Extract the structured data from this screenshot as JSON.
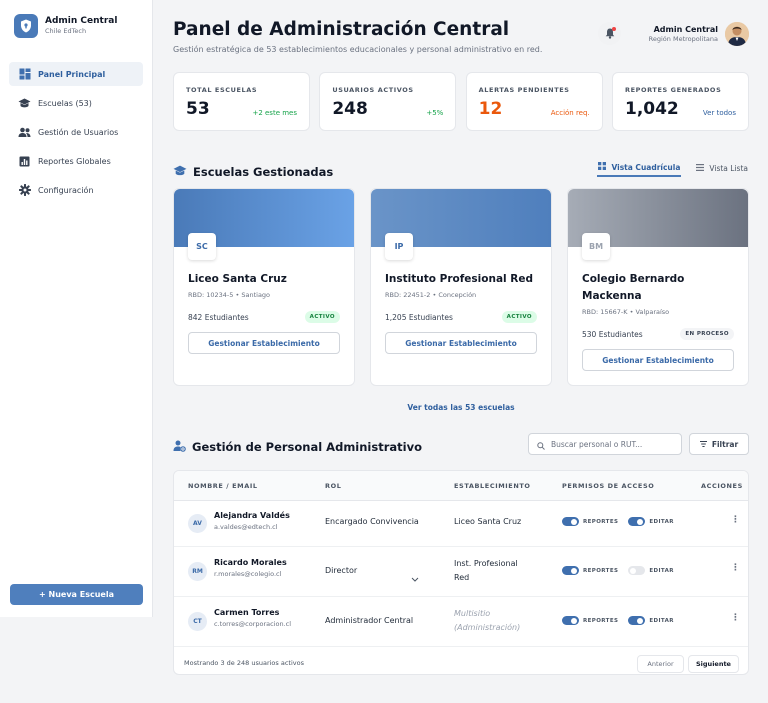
{
  "brand": {
    "title": "Admin Central",
    "subtitle": "Chile EdTech",
    "icon": "shield-icon",
    "color": "#4a7ab8"
  },
  "sidebar": {
    "items": [
      {
        "label": "Panel Principal",
        "icon": "dashboard-icon",
        "active": true
      },
      {
        "label": "Escuelas (53)",
        "icon": "school-icon",
        "active": false
      },
      {
        "label": "Gestión de Usuarios",
        "icon": "users-icon",
        "active": false
      },
      {
        "label": "Reportes Globales",
        "icon": "chart-icon",
        "active": false
      },
      {
        "label": "Configuración",
        "icon": "gear-icon",
        "active": false
      }
    ],
    "new_button": "+ Nueva Escuela"
  },
  "header": {
    "title": "Panel de Administración Central",
    "subtitle": "Gestión estratégica de 53 establecimientos educacionales y personal administrativo en red.",
    "user_name": "Admin Central",
    "user_region": "Región Metropolitana"
  },
  "stats": [
    {
      "label": "TOTAL ESCUELAS",
      "value": "53",
      "note": "+2 este mes",
      "note_color": "#16a34a",
      "value_color": "#111827"
    },
    {
      "label": "USUARIOS ACTIVOS",
      "value": "248",
      "note": "+5%",
      "note_color": "#16a34a",
      "value_color": "#111827"
    },
    {
      "label": "ALERTAS PENDIENTES",
      "value": "12",
      "note": "Acción req.",
      "note_color": "#ea580c",
      "value_color": "#ea580c"
    },
    {
      "label": "REPORTES GENERADOS",
      "value": "1,042",
      "note": "Ver todos",
      "note_color": "#2f5f9e",
      "value_color": "#111827"
    }
  ],
  "schools_section": {
    "title": "Escuelas Gestionadas",
    "view_grid": "Vista Cuadrícula",
    "view_list": "Vista Lista",
    "view_all": "Ver todas las 53 escuelas",
    "cards": [
      {
        "initials": "SC",
        "name": "Liceo Santa Cruz",
        "rbd": "RBD: 10234-5 • Santiago",
        "students": "842 Estudiantes",
        "status": "ACTIVO",
        "button": "Gestionar Establecimiento",
        "banner_from": "#4a7ab8",
        "banner_to": "#6aa2e6",
        "status_bg": "#dcfce7",
        "status_color": "#15803d",
        "initials_color": "#3b6aa8"
      },
      {
        "initials": "IP",
        "name": "Instituto Profesional Red",
        "rbd": "RBD: 22451-2 • Concepción",
        "students": "1,205 Estudiantes",
        "status": "ACTIVO",
        "button": "Gestionar Establecimiento",
        "banner_from": "#6a94c8",
        "banner_to": "#4f7fbd",
        "status_bg": "#dcfce7",
        "status_color": "#15803d",
        "initials_color": "#3b6aa8"
      },
      {
        "initials": "BM",
        "name": "Colegio Bernardo Mackenna",
        "rbd": "RBD: 15667-K • Valparaíso",
        "students": "530 Estudiantes",
        "status": "EN PROCESO",
        "button": "Gestionar Establecimiento",
        "banner_from": "#a6acb6",
        "banner_to": "#6b7280",
        "status_bg": "#f3f4f6",
        "status_color": "#374151",
        "initials_color": "#9ca3af"
      }
    ]
  },
  "staff_section": {
    "title": "Gestión de Personal Administrativo",
    "search_placeholder": "Buscar personal o RUT...",
    "filter_label": "Filtrar",
    "columns": [
      "NOMBRE / EMAIL",
      "ROL",
      "ESTABLECIMIENTO",
      "PERMISOS DE ACCESO",
      "ACCIONES"
    ],
    "perm_reports": "REPORTES",
    "perm_edit": "EDITAR",
    "rows": [
      {
        "initials": "AV",
        "name": "Alejandra Valdés",
        "email": "a.valdes@edtech.cl",
        "role": "Encargado Convivencia",
        "school_line1": "Liceo Santa Cruz",
        "school_line2": "",
        "reports": true,
        "edit": true
      },
      {
        "initials": "RM",
        "name": "Ricardo Morales",
        "email": "r.morales@colegio.cl",
        "role": "Director",
        "school_line1": "Inst. Profesional",
        "school_line2": "Red",
        "reports": true,
        "edit": false
      },
      {
        "initials": "CT",
        "name": "Carmen Torres",
        "email": "c.torres@corporacion.cl",
        "role": "Administrador Central",
        "school_line1": "Multisitio",
        "school_line2": "(Administración)",
        "reports": true,
        "edit": true
      }
    ],
    "footer_text": "Mostrando 3 de 248 usuarios activos",
    "prev_label": "Anterior",
    "next_label": "Siguiente"
  }
}
